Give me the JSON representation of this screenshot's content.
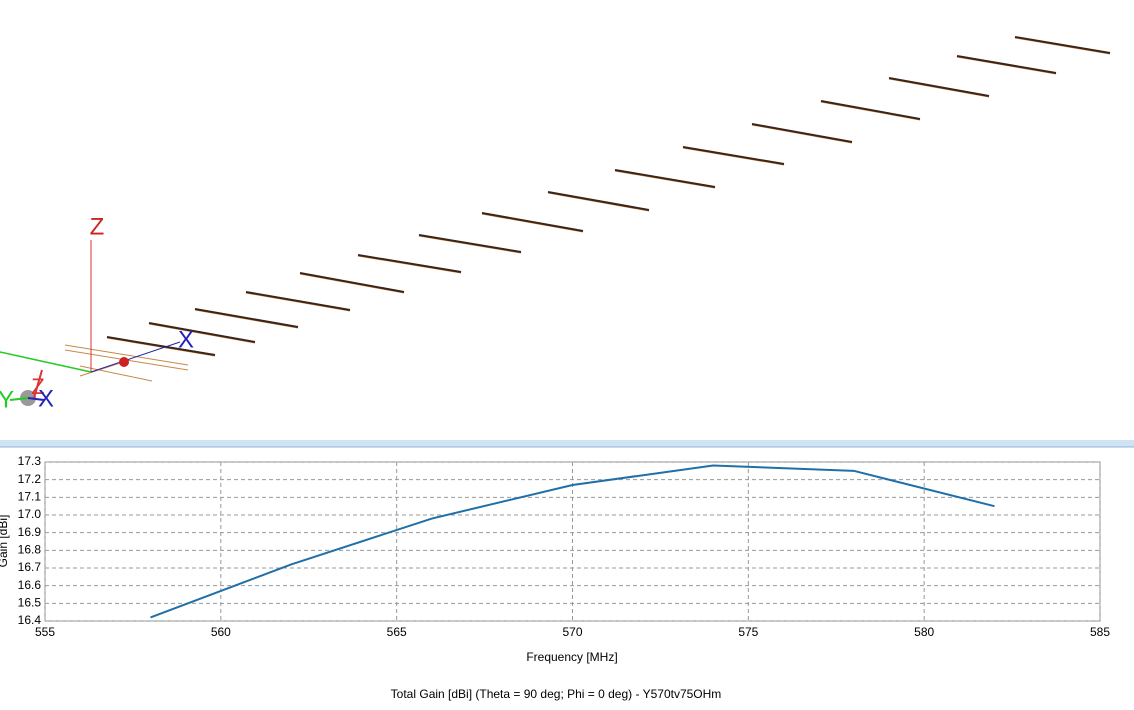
{
  "view": {
    "axis_labels": [
      "Z",
      "X",
      "Y",
      "Z",
      "X"
    ]
  },
  "chart_data": {
    "type": "line",
    "title": "Total Gain [dBi] (Theta = 90 deg; Phi = 0 deg) - Y570tv75OHm",
    "x_label": "Frequency [MHz]",
    "y_label": "Gain [dBi]",
    "x": [
      558,
      562,
      566,
      570,
      574,
      578,
      582
    ],
    "series": [
      {
        "name": "Y570tv75OHm",
        "color": "#1f6fa8",
        "values": [
          16.42,
          16.72,
          16.98,
          17.17,
          17.28,
          17.25,
          17.05
        ]
      }
    ],
    "xlim": [
      555,
      585
    ],
    "xticks": [
      555,
      560,
      565,
      570,
      575,
      580,
      585
    ],
    "ylim": [
      16.4,
      17.3
    ],
    "yticks": [
      16.4,
      16.5,
      16.6,
      16.7,
      16.8,
      16.9,
      {
        "value": 17,
        "label": "17.0"
      },
      17.1,
      17.2,
      17.3
    ],
    "grid": true
  }
}
